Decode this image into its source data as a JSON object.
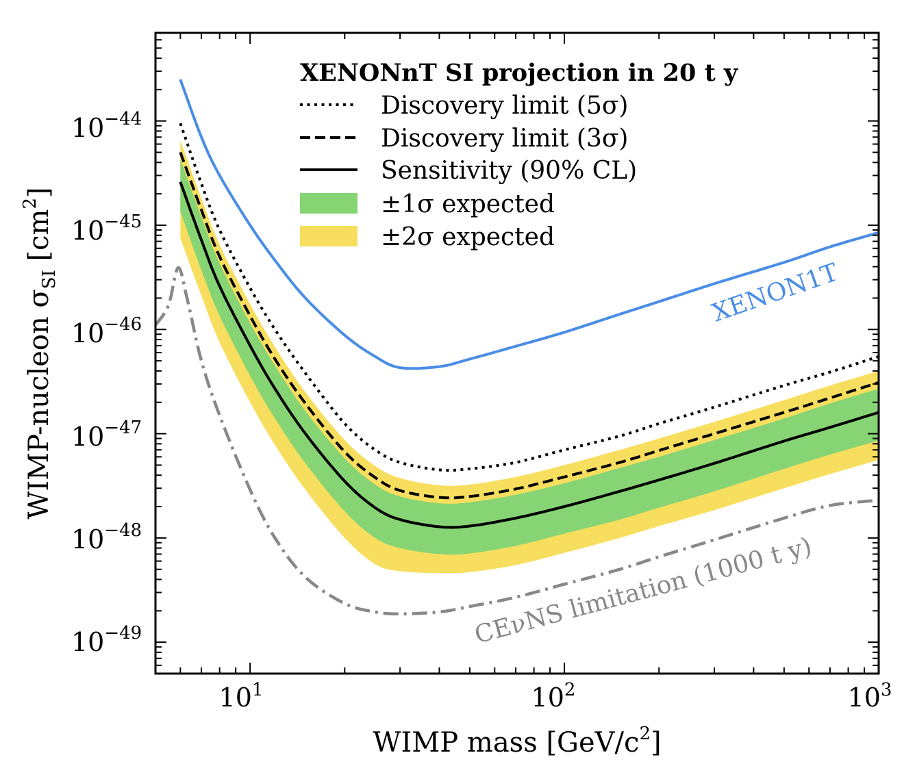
{
  "chart_data": {
    "type": "line",
    "x_scale": "log",
    "y_scale": "log",
    "xlim": [
      5,
      1000
    ],
    "ylim": [
      5e-50,
      7e-44
    ],
    "xlabel": "WIMP mass [GeV/c",
    "xlabel_sup": "2",
    "xlabel_end": "]",
    "ylabel": "WIMP-nucleon σ",
    "ylabel_sub": "SI",
    "ylabel_unit": " [cm",
    "ylabel_sup": "2",
    "ylabel_end": "]",
    "x_ticks": [
      {
        "value": 10,
        "base": "10",
        "exp": "1"
      },
      {
        "value": 100,
        "base": "10",
        "exp": "2"
      },
      {
        "value": 1000,
        "base": "10",
        "exp": "3"
      }
    ],
    "y_ticks": [
      {
        "value": 1e-44,
        "base": "10",
        "exp": "−44"
      },
      {
        "value": 1e-45,
        "base": "10",
        "exp": "−45"
      },
      {
        "value": 1e-46,
        "base": "10",
        "exp": "−46"
      },
      {
        "value": 1e-47,
        "base": "10",
        "exp": "−47"
      },
      {
        "value": 1e-48,
        "base": "10",
        "exp": "−48"
      },
      {
        "value": 1e-49,
        "base": "10",
        "exp": "−49"
      }
    ],
    "legend": {
      "title": "XENONnT SI projection in 20 t y",
      "location": "top-right",
      "entries": [
        {
          "label": "Discovery limit (5σ)",
          "style": "dotted",
          "color": "#000000"
        },
        {
          "label": "Discovery limit (3σ)",
          "style": "dashed",
          "color": "#000000"
        },
        {
          "label": "Sensitivity (90% CL)",
          "style": "solid",
          "color": "#000000"
        },
        {
          "label": "±1σ expected",
          "style": "band",
          "color": "#87d474"
        },
        {
          "label": "±2σ expected",
          "style": "band",
          "color": "#f7de5e"
        }
      ]
    },
    "series": [
      {
        "name": "XENON1T",
        "style": "solid",
        "color": "#4a8de6",
        "x": [
          6,
          7,
          8,
          10,
          12,
          15,
          20,
          25,
          30,
          40,
          50,
          70,
          100,
          150,
          200,
          300,
          500,
          700,
          1000
        ],
        "y": [
          2.5e-44,
          7e-45,
          3e-45,
          1e-45,
          4.6e-46,
          2e-46,
          8.8e-47,
          5.5e-47,
          4.3e-47,
          4.4e-47,
          5.2e-47,
          6.9e-47,
          9.4e-47,
          1.4e-46,
          1.85e-46,
          2.75e-46,
          4.4e-46,
          6.2e-46,
          8.5e-46
        ]
      },
      {
        "name": "Discovery limit (5σ)",
        "style": "dotted",
        "color": "#000000",
        "x": [
          6,
          7,
          8,
          10,
          12,
          15,
          20,
          25,
          30,
          40,
          50,
          70,
          100,
          150,
          200,
          300,
          500,
          700,
          1000
        ],
        "y": [
          9.5e-45,
          2.5e-45,
          9e-46,
          2.5e-46,
          1e-46,
          3.8e-47,
          1.25e-47,
          7e-48,
          5.3e-48,
          4.5e-48,
          4.6e-48,
          5.3e-48,
          7e-48,
          9.5e-48,
          1.25e-47,
          1.8e-47,
          2.9e-47,
          3.9e-47,
          5.5e-47
        ]
      },
      {
        "name": "Discovery limit (3σ)",
        "style": "dashed",
        "color": "#000000",
        "x": [
          6,
          7,
          8,
          10,
          12,
          15,
          20,
          25,
          30,
          40,
          50,
          70,
          100,
          150,
          200,
          300,
          500,
          700,
          1000
        ],
        "y": [
          5e-45,
          1.4e-45,
          5e-46,
          1.35e-46,
          5.2e-47,
          1.95e-47,
          6.7e-48,
          3.8e-48,
          2.85e-48,
          2.45e-48,
          2.5e-48,
          2.95e-48,
          3.85e-48,
          5.3e-48,
          6.9e-48,
          1e-47,
          1.6e-47,
          2.2e-47,
          3.1e-47
        ]
      },
      {
        "name": "Sensitivity (90% CL)",
        "style": "solid",
        "color": "#000000",
        "x": [
          6,
          7,
          8,
          10,
          12,
          15,
          20,
          25,
          30,
          40,
          50,
          70,
          100,
          150,
          200,
          300,
          500,
          700,
          1000
        ],
        "y": [
          2.6e-45,
          7.2e-46,
          2.6e-46,
          7e-47,
          2.7e-47,
          1e-47,
          3.5e-48,
          1.95e-48,
          1.5e-48,
          1.28e-48,
          1.3e-48,
          1.55e-48,
          2e-48,
          2.8e-48,
          3.6e-48,
          5.2e-48,
          8.5e-48,
          1.15e-47,
          1.6e-47
        ]
      },
      {
        "name": "CEνNS limitation (1000 t y)",
        "style": "dashdot",
        "color": "#888888",
        "x": [
          5,
          5.5,
          5.9,
          6.3,
          7,
          8,
          10,
          12,
          15,
          20,
          25,
          30,
          40,
          50,
          70,
          100,
          150,
          200,
          300,
          500,
          700,
          1000
        ],
        "y": [
          1.1e-46,
          1.7e-46,
          3.9e-46,
          2e-46,
          5e-47,
          1.5e-47,
          2.9e-48,
          1e-48,
          4.2e-49,
          2.35e-49,
          1.95e-49,
          1.87e-49,
          1.95e-49,
          2.2e-49,
          2.7e-49,
          3.6e-49,
          5e-49,
          6.6e-49,
          9.6e-49,
          1.55e-48,
          2.05e-48,
          2.3e-48
        ]
      }
    ],
    "bands": [
      {
        "name": "±2σ expected",
        "color": "#f7de5e",
        "x": [
          6,
          7,
          8,
          10,
          12,
          15,
          20,
          25,
          30,
          40,
          50,
          70,
          100,
          150,
          200,
          300,
          500,
          700,
          1000
        ],
        "upper": [
          6.5e-45,
          1.8e-45,
          6.5e-46,
          1.75e-46,
          6.8e-47,
          2.5e-47,
          8.7e-48,
          4.9e-48,
          3.75e-48,
          3.2e-48,
          3.25e-48,
          3.85e-48,
          5e-48,
          7e-48,
          9e-48,
          1.3e-47,
          2.1e-47,
          2.9e-47,
          4e-47
        ],
        "lower": [
          7.5e-46,
          2.1e-46,
          7.5e-47,
          2e-47,
          7.8e-48,
          2.9e-48,
          1e-48,
          5.6e-49,
          4.8e-49,
          4.6e-49,
          4.7e-49,
          5.5e-49,
          7.2e-49,
          1e-48,
          1.3e-48,
          1.85e-48,
          3e-48,
          4.1e-48,
          5.6e-48
        ]
      },
      {
        "name": "±1σ expected",
        "color": "#87d474",
        "x": [
          6,
          7,
          8,
          10,
          12,
          15,
          20,
          25,
          30,
          40,
          50,
          70,
          100,
          150,
          200,
          300,
          500,
          700,
          1000
        ],
        "upper": [
          4.3e-45,
          1.2e-45,
          4.3e-46,
          1.15e-46,
          4.5e-47,
          1.65e-47,
          5.8e-48,
          3.25e-48,
          2.5e-48,
          2.15e-48,
          2.2e-48,
          2.6e-48,
          3.35e-48,
          4.7e-48,
          6e-48,
          8.7e-48,
          1.4e-47,
          1.95e-47,
          2.7e-47
        ],
        "lower": [
          1.35e-45,
          3.7e-46,
          1.35e-46,
          3.6e-47,
          1.4e-47,
          5.2e-48,
          1.8e-48,
          1e-48,
          8e-49,
          7e-49,
          7.1e-49,
          8.4e-49,
          1.1e-48,
          1.5e-48,
          1.95e-48,
          2.8e-48,
          4.6e-48,
          6.3e-48,
          8.6e-48
        ]
      }
    ],
    "annotations": [
      {
        "text": "XENON1T",
        "color": "#4a8de6",
        "rotation": -19
      },
      {
        "text": "CEνNS limitation (1000 t y)",
        "color": "#888888",
        "rotation": -15
      }
    ]
  }
}
